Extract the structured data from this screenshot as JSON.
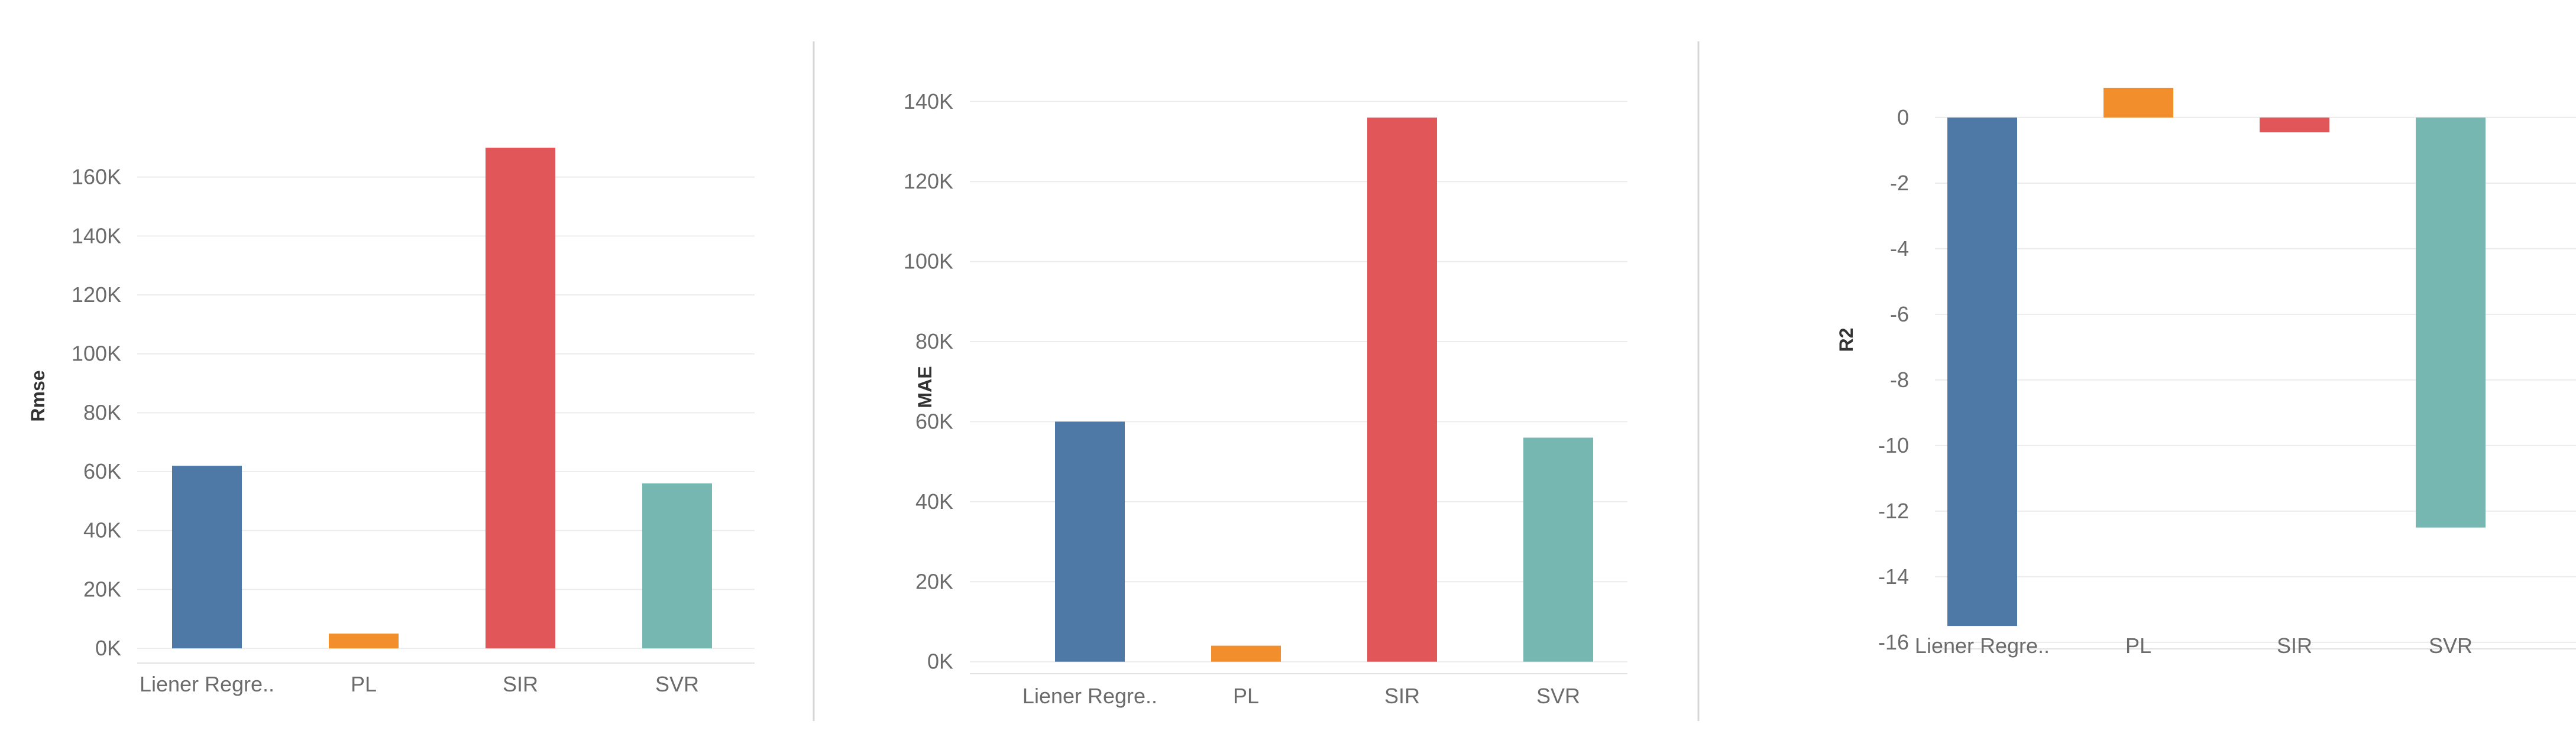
{
  "chart_data": [
    {
      "type": "bar",
      "ylabel": "Rmse",
      "categories": [
        "Liener Regre..",
        "PL",
        "SIR",
        "SVR"
      ],
      "values": [
        62000,
        5000,
        170000,
        56000
      ],
      "colors": [
        "#4e79a7",
        "#f28e2b",
        "#e15759",
        "#76b7b2"
      ],
      "yticks": [
        0,
        20000,
        40000,
        60000,
        80000,
        100000,
        120000,
        140000,
        160000
      ],
      "ytick_labels": [
        "0K",
        "20K",
        "40K",
        "60K",
        "80K",
        "100K",
        "120K",
        "140K",
        "160K"
      ],
      "ylim": [
        -5000,
        180000
      ],
      "grid": true
    },
    {
      "type": "bar",
      "ylabel": "MAE",
      "categories": [
        "Liener Regre..",
        "PL",
        "SIR",
        "SVR"
      ],
      "values": [
        60000,
        4000,
        136000,
        56000
      ],
      "colors": [
        "#4e79a7",
        "#f28e2b",
        "#e15759",
        "#76b7b2"
      ],
      "yticks": [
        0,
        20000,
        40000,
        60000,
        80000,
        100000,
        120000,
        140000
      ],
      "ytick_labels": [
        "0K",
        "20K",
        "40K",
        "60K",
        "80K",
        "100K",
        "120K",
        "140K"
      ],
      "ylim": [
        -3000,
        141000
      ],
      "grid": true
    },
    {
      "type": "bar",
      "ylabel": "R2",
      "categories": [
        "Liener Regre..",
        "PL",
        "SIR",
        "SVR"
      ],
      "values": [
        -15.5,
        0.9,
        -0.45,
        -12.5
      ],
      "colors": [
        "#4e79a7",
        "#f28e2b",
        "#e15759",
        "#76b7b2"
      ],
      "yticks": [
        0,
        -2,
        -4,
        -6,
        -8,
        -10,
        -12,
        -14,
        -16
      ],
      "ytick_labels": [
        "0",
        "-2",
        "-4",
        "-6",
        "-8",
        "-10",
        "-12",
        "-14",
        "-16"
      ],
      "ylim": [
        -16.2,
        1.6
      ],
      "grid": true
    }
  ]
}
